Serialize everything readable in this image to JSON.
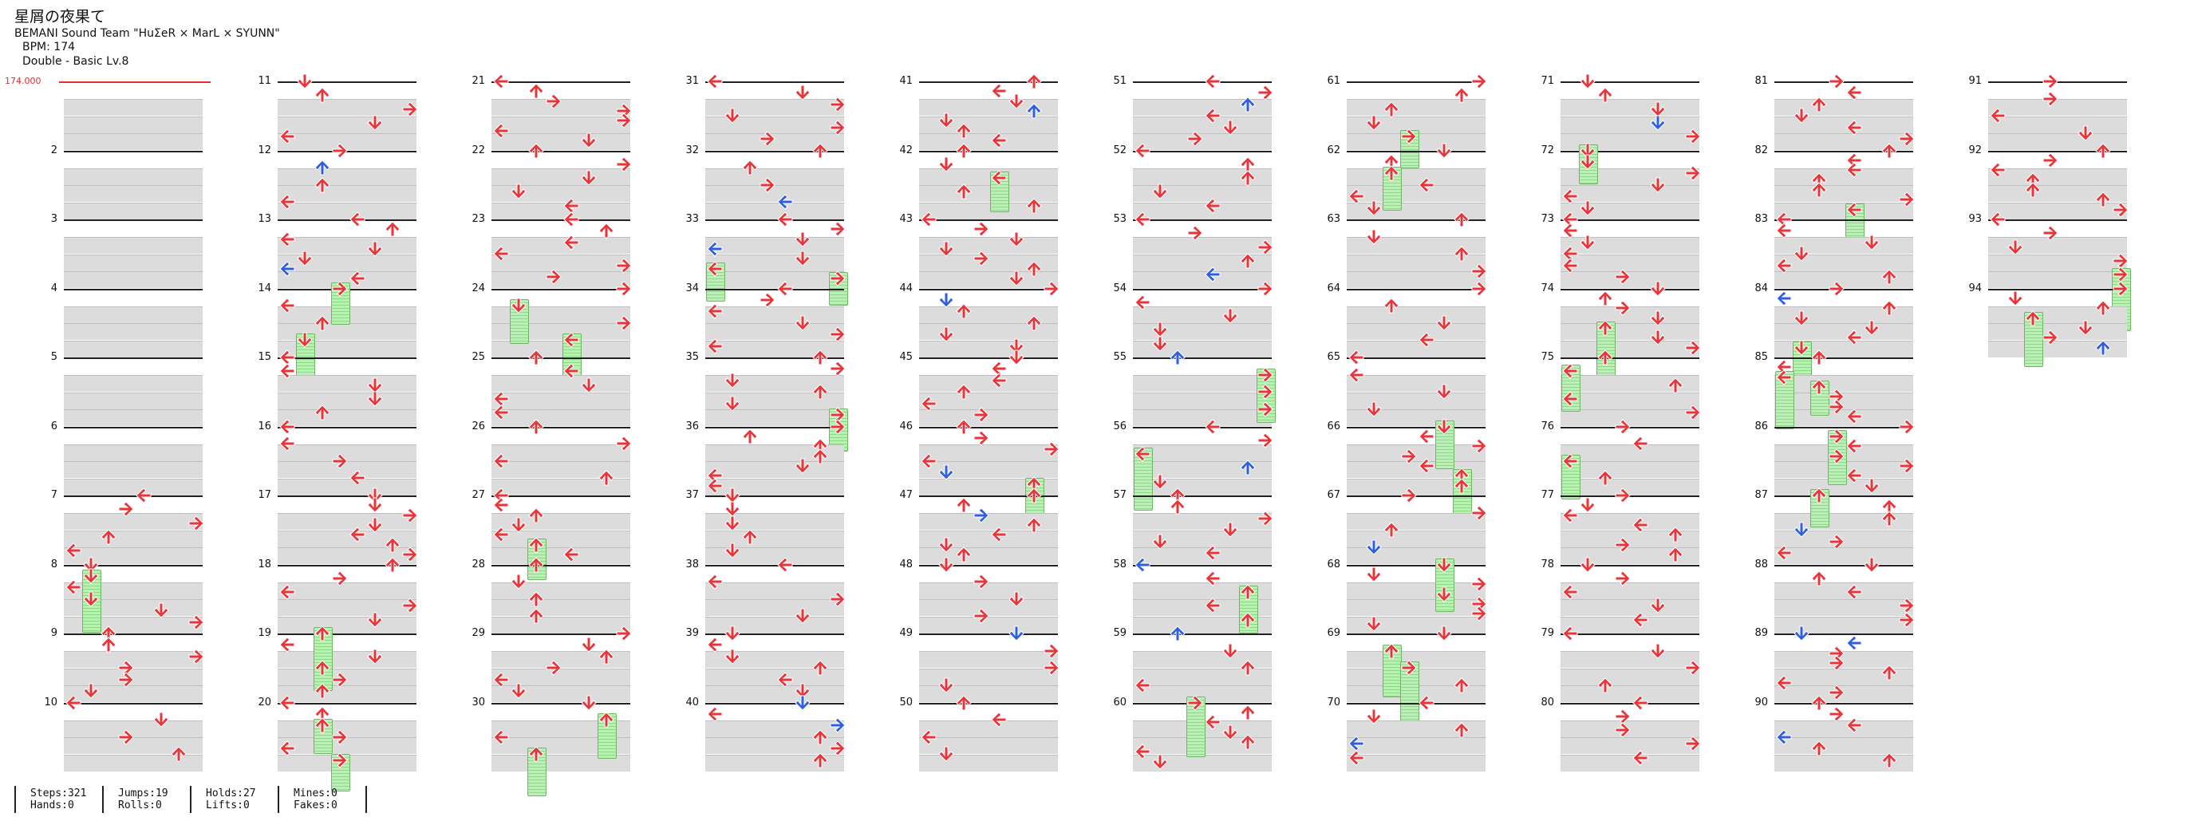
{
  "header": {
    "title": "星屑の夜果て",
    "artist": "BEMANI Sound Team \"HuΣeR × MarL × SYUNN\"",
    "bpm": "BPM: 174",
    "chart": "Double - Basic  Lv.8"
  },
  "bpm_marker": "174.000",
  "colors": {
    "red_arrow": "#e8353a",
    "blue_arrow": "#2f5fe0",
    "hold": "#9be494",
    "stripe": "#dcdcdc"
  },
  "measures": {
    "columns": [
      [
        "",
        "2",
        "3",
        "4",
        "5",
        "6",
        "7",
        "8",
        "9",
        "10"
      ],
      [
        "11",
        "12",
        "13",
        "14",
        "15",
        "16",
        "17",
        "18",
        "19",
        "20"
      ],
      [
        "21",
        "22",
        "23",
        "24",
        "25",
        "26",
        "27",
        "28",
        "29",
        "30"
      ],
      [
        "31",
        "32",
        "33",
        "34",
        "35",
        "36",
        "37",
        "38",
        "39",
        "40"
      ],
      [
        "41",
        "42",
        "43",
        "44",
        "45",
        "46",
        "47",
        "48",
        "49",
        "50"
      ],
      [
        "51",
        "52",
        "53",
        "54",
        "55",
        "56",
        "57",
        "58",
        "59",
        "60"
      ],
      [
        "61",
        "62",
        "63",
        "64",
        "65",
        "66",
        "67",
        "68",
        "69",
        "70"
      ],
      [
        "71",
        "72",
        "73",
        "74",
        "75",
        "76",
        "77",
        "78",
        "79",
        "80"
      ],
      [
        "81",
        "82",
        "83",
        "84",
        "85",
        "86",
        "87",
        "88",
        "89",
        "90"
      ],
      [
        "91",
        "92",
        "93",
        "94"
      ]
    ]
  },
  "stats": [
    {
      "a": "Steps:321",
      "b": "Hands:0"
    },
    {
      "a": "Jumps:19",
      "b": "Rolls:0"
    },
    {
      "a": "Holds:27",
      "b": "Lifts:0"
    },
    {
      "a": "Mines:0",
      "b": "Fakes:0"
    }
  ],
  "arrow_icons": [
    "arrow-left-icon",
    "arrow-down-icon",
    "arrow-up-icon",
    "arrow-right-icon"
  ]
}
